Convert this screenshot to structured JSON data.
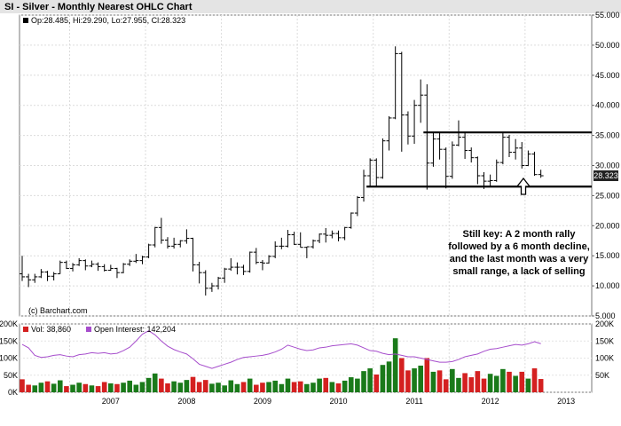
{
  "title": "SI - Silver - Monthly Nearest OHLC Chart",
  "price_legend": "Op:28.485, Hi:29.290, Lo:27.955, Cl:28.323",
  "last_price_badge": "28.323",
  "copyright": "(c) Barchart.com",
  "annotation_lines": [
    "Still key: A 2 month rally",
    "followed by a 6 month decline,",
    "and the last month was a very",
    "small range, a lack of selling"
  ],
  "volume_legend": "Vol: 38,860",
  "oi_legend": "Open Interest: 142,204",
  "colors": {
    "up_bar": "#1a7a1a",
    "down_bar": "#d42020",
    "open_interest": "#a64dcc",
    "price_bar": "#000000",
    "legend_box": "#000000",
    "title_bg": "#e4e4e4"
  },
  "chart_data": [
    {
      "type": "ohlc",
      "title": "SI - Silver - Monthly Nearest OHLC Chart",
      "ylim": [
        5,
        55
      ],
      "y_ticks": [
        "5.000",
        "10.000",
        "15.000",
        "20.000",
        "25.000",
        "30.000",
        "35.000",
        "40.000",
        "45.000",
        "50.000",
        "55.000"
      ],
      "x_ticks": [
        "2007",
        "2008",
        "2009",
        "2010",
        "2011",
        "2012",
        "2013"
      ],
      "support_line": 26.5,
      "resistance_line": 35.5,
      "bars": [
        {
          "t": "2006-05",
          "o": 12.0,
          "h": 15.0,
          "l": 10.8,
          "c": 11.5
        },
        {
          "t": "2006-06",
          "o": 11.5,
          "h": 12.0,
          "l": 9.8,
          "c": 11.0
        },
        {
          "t": "2006-07",
          "o": 11.0,
          "h": 12.0,
          "l": 10.5,
          "c": 11.5
        },
        {
          "t": "2006-08",
          "o": 11.5,
          "h": 12.8,
          "l": 11.3,
          "c": 12.3
        },
        {
          "t": "2006-09",
          "o": 12.3,
          "h": 12.5,
          "l": 10.8,
          "c": 11.6
        },
        {
          "t": "2006-10",
          "o": 11.6,
          "h": 12.3,
          "l": 10.9,
          "c": 12.0
        },
        {
          "t": "2006-11",
          "o": 12.0,
          "h": 14.2,
          "l": 12.0,
          "c": 13.9
        },
        {
          "t": "2006-12",
          "o": 13.9,
          "h": 14.2,
          "l": 12.8,
          "c": 12.9
        },
        {
          "t": "2007-01",
          "o": 12.9,
          "h": 13.8,
          "l": 12.4,
          "c": 13.5
        },
        {
          "t": "2007-02",
          "o": 13.5,
          "h": 14.6,
          "l": 13.3,
          "c": 14.2
        },
        {
          "t": "2007-03",
          "o": 14.2,
          "h": 14.4,
          "l": 12.6,
          "c": 13.3
        },
        {
          "t": "2007-04",
          "o": 13.3,
          "h": 14.2,
          "l": 13.1,
          "c": 13.6
        },
        {
          "t": "2007-05",
          "o": 13.6,
          "h": 13.9,
          "l": 12.5,
          "c": 13.2
        },
        {
          "t": "2007-06",
          "o": 13.2,
          "h": 13.6,
          "l": 12.4,
          "c": 12.6
        },
        {
          "t": "2007-07",
          "o": 12.6,
          "h": 13.5,
          "l": 12.5,
          "c": 12.9
        },
        {
          "t": "2007-08",
          "o": 12.9,
          "h": 13.0,
          "l": 11.3,
          "c": 12.2
        },
        {
          "t": "2007-09",
          "o": 12.2,
          "h": 13.8,
          "l": 12.1,
          "c": 13.6
        },
        {
          "t": "2007-10",
          "o": 13.6,
          "h": 14.4,
          "l": 13.3,
          "c": 14.1
        },
        {
          "t": "2007-11",
          "o": 14.1,
          "h": 15.3,
          "l": 13.8,
          "c": 14.2
        },
        {
          "t": "2007-12",
          "o": 14.2,
          "h": 15.0,
          "l": 13.6,
          "c": 14.8
        },
        {
          "t": "2008-01",
          "o": 14.8,
          "h": 17.0,
          "l": 14.6,
          "c": 16.8
        },
        {
          "t": "2008-02",
          "o": 16.8,
          "h": 19.8,
          "l": 16.4,
          "c": 19.7
        },
        {
          "t": "2008-03",
          "o": 19.7,
          "h": 21.3,
          "l": 17.0,
          "c": 17.6
        },
        {
          "t": "2008-04",
          "o": 17.6,
          "h": 18.1,
          "l": 16.2,
          "c": 16.6
        },
        {
          "t": "2008-05",
          "o": 16.6,
          "h": 18.0,
          "l": 16.2,
          "c": 16.9
        },
        {
          "t": "2008-06",
          "o": 16.9,
          "h": 17.6,
          "l": 16.4,
          "c": 17.5
        },
        {
          "t": "2008-07",
          "o": 17.5,
          "h": 19.4,
          "l": 17.0,
          "c": 17.9
        },
        {
          "t": "2008-08",
          "o": 17.9,
          "h": 18.0,
          "l": 12.4,
          "c": 13.5
        },
        {
          "t": "2008-09",
          "o": 13.5,
          "h": 14.0,
          "l": 10.4,
          "c": 12.2
        },
        {
          "t": "2008-10",
          "o": 12.2,
          "h": 12.6,
          "l": 8.4,
          "c": 9.6
        },
        {
          "t": "2008-11",
          "o": 9.6,
          "h": 10.5,
          "l": 9.0,
          "c": 10.0
        },
        {
          "t": "2008-12",
          "o": 10.0,
          "h": 11.5,
          "l": 9.4,
          "c": 11.3
        },
        {
          "t": "2009-01",
          "o": 11.3,
          "h": 13.0,
          "l": 10.5,
          "c": 12.8
        },
        {
          "t": "2009-02",
          "o": 12.8,
          "h": 14.6,
          "l": 12.5,
          "c": 13.1
        },
        {
          "t": "2009-03",
          "o": 13.1,
          "h": 13.9,
          "l": 11.9,
          "c": 13.1
        },
        {
          "t": "2009-04",
          "o": 13.1,
          "h": 13.5,
          "l": 11.8,
          "c": 12.4
        },
        {
          "t": "2009-05",
          "o": 12.4,
          "h": 15.7,
          "l": 12.2,
          "c": 15.6
        },
        {
          "t": "2009-06",
          "o": 15.6,
          "h": 16.3,
          "l": 13.6,
          "c": 13.9
        },
        {
          "t": "2009-07",
          "o": 13.9,
          "h": 14.3,
          "l": 12.6,
          "c": 13.8
        },
        {
          "t": "2009-08",
          "o": 13.8,
          "h": 15.1,
          "l": 13.7,
          "c": 14.9
        },
        {
          "t": "2009-09",
          "o": 14.9,
          "h": 17.4,
          "l": 14.6,
          "c": 16.6
        },
        {
          "t": "2009-10",
          "o": 16.6,
          "h": 18.0,
          "l": 16.1,
          "c": 16.6
        },
        {
          "t": "2009-11",
          "o": 16.6,
          "h": 19.3,
          "l": 16.4,
          "c": 18.5
        },
        {
          "t": "2009-12",
          "o": 18.5,
          "h": 19.0,
          "l": 16.8,
          "c": 16.9
        },
        {
          "t": "2010-01",
          "o": 16.9,
          "h": 18.9,
          "l": 16.4,
          "c": 16.4
        },
        {
          "t": "2010-02",
          "o": 16.4,
          "h": 16.5,
          "l": 14.6,
          "c": 16.5
        },
        {
          "t": "2010-03",
          "o": 16.5,
          "h": 17.7,
          "l": 16.2,
          "c": 17.5
        },
        {
          "t": "2010-04",
          "o": 17.5,
          "h": 18.7,
          "l": 17.1,
          "c": 18.6
        },
        {
          "t": "2010-05",
          "o": 18.6,
          "h": 19.6,
          "l": 17.2,
          "c": 18.4
        },
        {
          "t": "2010-06",
          "o": 18.4,
          "h": 19.2,
          "l": 17.9,
          "c": 18.7
        },
        {
          "t": "2010-07",
          "o": 18.7,
          "h": 19.2,
          "l": 17.4,
          "c": 18.0
        },
        {
          "t": "2010-08",
          "o": 18.0,
          "h": 19.8,
          "l": 17.6,
          "c": 19.7
        },
        {
          "t": "2010-09",
          "o": 19.7,
          "h": 22.2,
          "l": 19.5,
          "c": 22.1
        },
        {
          "t": "2010-10",
          "o": 22.1,
          "h": 24.9,
          "l": 21.6,
          "c": 24.7
        },
        {
          "t": "2010-11",
          "o": 24.7,
          "h": 29.3,
          "l": 24.0,
          "c": 28.3
        },
        {
          "t": "2010-12",
          "o": 28.3,
          "h": 31.2,
          "l": 26.5,
          "c": 30.9
        },
        {
          "t": "2011-01",
          "o": 30.9,
          "h": 31.2,
          "l": 26.4,
          "c": 28.0
        },
        {
          "t": "2011-02",
          "o": 28.0,
          "h": 34.5,
          "l": 27.8,
          "c": 34.1
        },
        {
          "t": "2011-03",
          "o": 34.1,
          "h": 38.2,
          "l": 32.5,
          "c": 37.9
        },
        {
          "t": "2011-04",
          "o": 37.9,
          "h": 49.8,
          "l": 37.7,
          "c": 48.6
        },
        {
          "t": "2011-05",
          "o": 48.6,
          "h": 48.9,
          "l": 32.3,
          "c": 38.4
        },
        {
          "t": "2011-06",
          "o": 38.4,
          "h": 39.0,
          "l": 33.5,
          "c": 34.9
        },
        {
          "t": "2011-07",
          "o": 34.9,
          "h": 40.9,
          "l": 33.6,
          "c": 40.0
        },
        {
          "t": "2011-08",
          "o": 40.0,
          "h": 44.3,
          "l": 37.1,
          "c": 41.7
        },
        {
          "t": "2011-09",
          "o": 41.7,
          "h": 43.5,
          "l": 26.0,
          "c": 30.4
        },
        {
          "t": "2011-10",
          "o": 30.4,
          "h": 35.5,
          "l": 29.8,
          "c": 34.4
        },
        {
          "t": "2011-11",
          "o": 34.4,
          "h": 35.4,
          "l": 31.0,
          "c": 32.7
        },
        {
          "t": "2011-12",
          "o": 32.7,
          "h": 33.0,
          "l": 26.2,
          "c": 28.2
        },
        {
          "t": "2012-01",
          "o": 28.2,
          "h": 34.0,
          "l": 27.8,
          "c": 33.4
        },
        {
          "t": "2012-02",
          "o": 33.4,
          "h": 37.5,
          "l": 33.2,
          "c": 34.7
        },
        {
          "t": "2012-03",
          "o": 34.7,
          "h": 35.4,
          "l": 31.1,
          "c": 32.5
        },
        {
          "t": "2012-04",
          "o": 32.5,
          "h": 33.0,
          "l": 30.5,
          "c": 31.3
        },
        {
          "t": "2012-05",
          "o": 31.3,
          "h": 31.5,
          "l": 26.9,
          "c": 28.3
        },
        {
          "t": "2012-06",
          "o": 28.3,
          "h": 28.9,
          "l": 26.1,
          "c": 27.4
        },
        {
          "t": "2012-07",
          "o": 27.4,
          "h": 28.5,
          "l": 26.4,
          "c": 27.5
        },
        {
          "t": "2012-08",
          "o": 27.5,
          "h": 31.0,
          "l": 27.3,
          "c": 30.5
        },
        {
          "t": "2012-09",
          "o": 30.5,
          "h": 35.4,
          "l": 30.2,
          "c": 34.7
        },
        {
          "t": "2012-10",
          "o": 34.7,
          "h": 35.1,
          "l": 31.4,
          "c": 32.2
        },
        {
          "t": "2012-11",
          "o": 32.2,
          "h": 34.4,
          "l": 31.0,
          "c": 32.9
        },
        {
          "t": "2012-12",
          "o": 32.9,
          "h": 33.9,
          "l": 29.5,
          "c": 30.0
        },
        {
          "t": "2013-01",
          "o": 30.0,
          "h": 32.5,
          "l": 29.9,
          "c": 31.9
        },
        {
          "t": "2013-02",
          "o": 31.9,
          "h": 32.3,
          "l": 28.3,
          "c": 28.5
        },
        {
          "t": "2013-03",
          "o": 28.5,
          "h": 29.3,
          "l": 27.96,
          "c": 28.3
        }
      ]
    },
    {
      "type": "bar",
      "title": "",
      "ylim": [
        0,
        200000
      ],
      "y_ticks": [
        "0K",
        "50K",
        "100K",
        "150K",
        "200K"
      ],
      "right_y_ticks": [
        "50K",
        "100K",
        "150K",
        "200K"
      ],
      "volume": [
        38000,
        22000,
        20000,
        28000,
        32000,
        25000,
        35000,
        18000,
        22000,
        28000,
        24000,
        20000,
        18000,
        30000,
        26000,
        24000,
        28000,
        34000,
        22000,
        30000,
        42000,
        55000,
        40000,
        26000,
        32000,
        28000,
        36000,
        45000,
        30000,
        36000,
        25000,
        28000,
        20000,
        35000,
        24000,
        30000,
        40000,
        22000,
        28000,
        30000,
        34000,
        24000,
        40000,
        30000,
        32000,
        24000,
        28000,
        40000,
        42000,
        30000,
        26000,
        34000,
        44000,
        40000,
        62000,
        70000,
        52000,
        80000,
        90000,
        158000,
        100000,
        64000,
        70000,
        78000,
        100000,
        60000,
        64000,
        38000,
        68000,
        42000,
        56000,
        44000,
        62000,
        40000,
        54000,
        48000,
        68000,
        60000,
        48000,
        60000,
        40000,
        70000,
        38860
      ],
      "open_interest": [
        140000,
        130000,
        108000,
        102000,
        104000,
        108000,
        110000,
        106000,
        104000,
        110000,
        112000,
        116000,
        114000,
        116000,
        112000,
        114000,
        122000,
        132000,
        150000,
        170000,
        180000,
        168000,
        150000,
        135000,
        125000,
        118000,
        112000,
        98000,
        82000,
        76000,
        70000,
        76000,
        82000,
        88000,
        96000,
        102000,
        104000,
        106000,
        108000,
        112000,
        118000,
        126000,
        138000,
        132000,
        126000,
        122000,
        124000,
        130000,
        132000,
        136000,
        138000,
        140000,
        142000,
        138000,
        130000,
        122000,
        120000,
        114000,
        110000,
        112000,
        108000,
        104000,
        104000,
        100000,
        96000,
        92000,
        88000,
        88000,
        90000,
        96000,
        104000,
        108000,
        112000,
        120000,
        126000,
        128000,
        132000,
        136000,
        140000,
        138000,
        142000,
        148000,
        142204
      ]
    }
  ]
}
